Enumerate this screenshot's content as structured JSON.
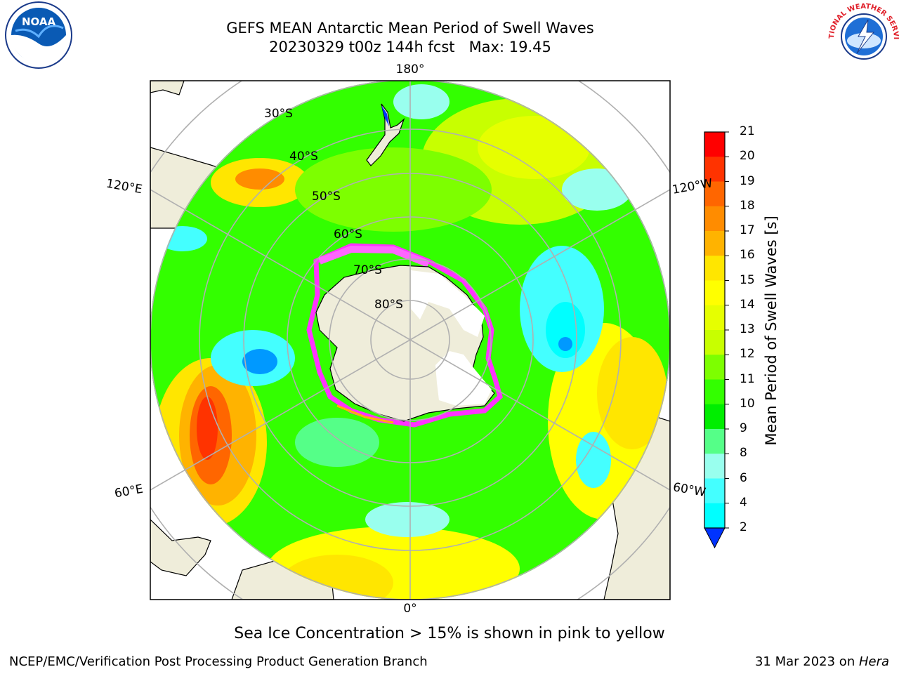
{
  "title": {
    "line1": "GEFS MEAN Antarctic Mean Period of Swell Waves",
    "line2": "20230329 t00z 144h fcst   Max: 19.45"
  },
  "meridian_labels": {
    "top": "180°",
    "bottom": "0°",
    "upper_left": "120°E",
    "upper_right": "120°W",
    "lower_left": "60°E",
    "lower_right": "60°W"
  },
  "parallel_labels": [
    "30°S",
    "40°S",
    "50°S",
    "60°S",
    "70°S",
    "80°S"
  ],
  "colorbar": {
    "title": "Mean Period of Swell Waves [s]",
    "ticks": [
      "21",
      "20",
      "19",
      "18",
      "17",
      "16",
      "15",
      "14",
      "13",
      "12",
      "11",
      "10",
      "9",
      "8",
      "6",
      "4",
      "2"
    ],
    "colors": [
      "#ff0000",
      "#ff3300",
      "#ff6600",
      "#ff8c00",
      "#ffb300",
      "#ffe600",
      "#ffff00",
      "#e6ff00",
      "#c8ff00",
      "#7dff00",
      "#33ff00",
      "#00ee00",
      "#55ff88",
      "#99ffee",
      "#44ffff",
      "#00ffff",
      "#0099ff",
      "#0033ff"
    ]
  },
  "footnote": "Sea Ice Concentration > 15% is shown in pink to yellow",
  "credit_left": "NCEP/EMC/Verification Post Processing Product Generation Branch",
  "credit_right_prefix": "31 Mar 2023 on ",
  "credit_right_host": "Hera",
  "logos": {
    "noaa": "NOAA",
    "nws": "NATIONAL WEATHER SERVICE"
  }
}
